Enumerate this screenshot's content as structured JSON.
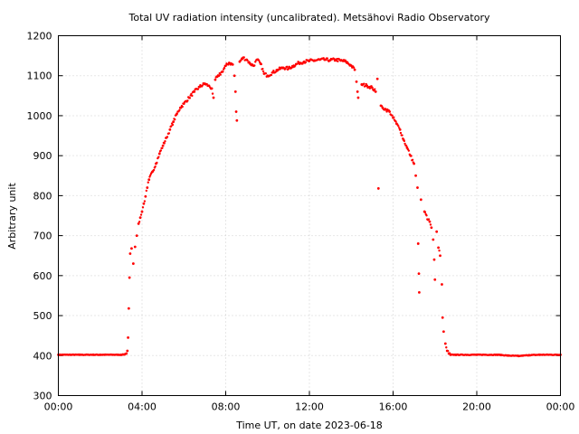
{
  "chart_data": {
    "type": "scatter",
    "title": "Total UV radiation intensity (uncalibrated). Metsähovi Radio Observatory",
    "xlabel": "Time UT, on date 2023-06-18",
    "ylabel": "Arbitrary unit",
    "xlim": [
      "00:00",
      "24:00"
    ],
    "ylim": [
      300,
      1200
    ],
    "x_tick_labels": [
      "00:00",
      "04:00",
      "08:00",
      "12:00",
      "16:00",
      "20:00",
      "00:00"
    ],
    "y_ticks": [
      300,
      400,
      500,
      600,
      700,
      800,
      900,
      1000,
      1100,
      1200
    ],
    "grid": true,
    "series": [
      {
        "color": "#ff0000",
        "marker": "dot",
        "points": [
          [
            "00:00",
            402
          ],
          [
            "01:00",
            402
          ],
          [
            "02:00",
            402
          ],
          [
            "03:00",
            402
          ],
          [
            "03:10",
            403
          ],
          [
            "03:15",
            405
          ],
          [
            "03:18",
            412
          ],
          [
            "03:20",
            445
          ],
          [
            "03:22",
            518
          ],
          [
            "03:24",
            595
          ],
          [
            "03:26",
            655
          ],
          [
            "03:30",
            668
          ],
          [
            "03:35",
            630
          ],
          [
            "03:40",
            672
          ],
          [
            "03:45",
            700
          ],
          [
            "03:50",
            730
          ],
          [
            "03:55",
            745
          ],
          [
            "04:00",
            760
          ],
          [
            "04:05",
            780
          ],
          [
            "04:10",
            798
          ],
          [
            "04:15",
            820
          ],
          [
            "04:20",
            840
          ],
          [
            "04:30",
            860
          ],
          [
            "04:40",
            880
          ],
          [
            "04:50",
            905
          ],
          [
            "05:00",
            925
          ],
          [
            "05:10",
            945
          ],
          [
            "05:20",
            965
          ],
          [
            "05:30",
            985
          ],
          [
            "05:40",
            1005
          ],
          [
            "05:50",
            1020
          ],
          [
            "06:00",
            1030
          ],
          [
            "06:15",
            1045
          ],
          [
            "06:30",
            1060
          ],
          [
            "06:45",
            1072
          ],
          [
            "07:00",
            1080
          ],
          [
            "07:10",
            1075
          ],
          [
            "07:20",
            1068
          ],
          [
            "07:25",
            1045
          ],
          [
            "07:30",
            1090
          ],
          [
            "07:40",
            1100
          ],
          [
            "07:50",
            1110
          ],
          [
            "08:00",
            1125
          ],
          [
            "08:10",
            1132
          ],
          [
            "08:20",
            1128
          ],
          [
            "08:25",
            1100
          ],
          [
            "08:28",
            1060
          ],
          [
            "08:30",
            1010
          ],
          [
            "08:32",
            988
          ],
          [
            "08:40",
            1135
          ],
          [
            "08:50",
            1145
          ],
          [
            "09:00",
            1140
          ],
          [
            "09:10",
            1130
          ],
          [
            "09:20",
            1125
          ],
          [
            "09:30",
            1140
          ],
          [
            "09:40",
            1130
          ],
          [
            "09:50",
            1105
          ],
          [
            "10:00",
            1100
          ],
          [
            "10:15",
            1108
          ],
          [
            "10:30",
            1115
          ],
          [
            "10:45",
            1120
          ],
          [
            "11:00",
            1118
          ],
          [
            "11:15",
            1125
          ],
          [
            "11:30",
            1132
          ],
          [
            "11:45",
            1135
          ],
          [
            "12:00",
            1137
          ],
          [
            "12:15",
            1138
          ],
          [
            "12:30",
            1140
          ],
          [
            "12:45",
            1140
          ],
          [
            "13:00",
            1139
          ],
          [
            "13:15",
            1140
          ],
          [
            "13:30",
            1138
          ],
          [
            "13:45",
            1135
          ],
          [
            "14:00",
            1125
          ],
          [
            "14:10",
            1115
          ],
          [
            "14:15",
            1085
          ],
          [
            "14:18",
            1060
          ],
          [
            "14:20",
            1045
          ],
          [
            "14:30",
            1078
          ],
          [
            "14:45",
            1075
          ],
          [
            "15:00",
            1070
          ],
          [
            "15:10",
            1060
          ],
          [
            "15:15",
            1092
          ],
          [
            "15:18",
            818
          ],
          [
            "15:25",
            1025
          ],
          [
            "15:30",
            1020
          ],
          [
            "15:40",
            1015
          ],
          [
            "15:50",
            1010
          ],
          [
            "16:00",
            995
          ],
          [
            "16:10",
            980
          ],
          [
            "16:20",
            965
          ],
          [
            "16:30",
            940
          ],
          [
            "16:40",
            920
          ],
          [
            "16:50",
            900
          ],
          [
            "17:00",
            880
          ],
          [
            "17:05",
            850
          ],
          [
            "17:10",
            820
          ],
          [
            "17:12",
            680
          ],
          [
            "17:14",
            605
          ],
          [
            "17:15",
            558
          ],
          [
            "17:20",
            790
          ],
          [
            "17:30",
            760
          ],
          [
            "17:40",
            740
          ],
          [
            "17:45",
            735
          ],
          [
            "17:50",
            720
          ],
          [
            "17:55",
            690
          ],
          [
            "17:58",
            640
          ],
          [
            "18:00",
            590
          ],
          [
            "18:05",
            710
          ],
          [
            "18:10",
            670
          ],
          [
            "18:15",
            650
          ],
          [
            "18:20",
            578
          ],
          [
            "18:22",
            495
          ],
          [
            "18:25",
            460
          ],
          [
            "18:30",
            430
          ],
          [
            "18:35",
            412
          ],
          [
            "18:40",
            405
          ],
          [
            "18:45",
            402
          ],
          [
            "19:00",
            402
          ],
          [
            "20:00",
            402
          ],
          [
            "21:00",
            402
          ],
          [
            "21:30",
            400
          ],
          [
            "22:00",
            399
          ],
          [
            "22:30",
            401
          ],
          [
            "23:00",
            402
          ],
          [
            "24:00",
            402
          ]
        ]
      }
    ]
  }
}
